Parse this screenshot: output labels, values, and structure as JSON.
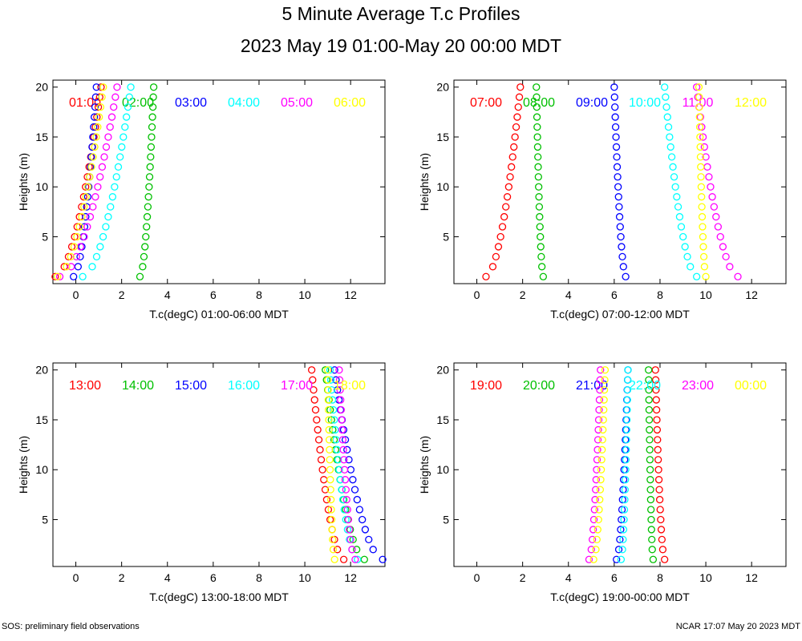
{
  "title": "5 Minute Average T.c Profiles",
  "subtitle": "2023 May 19 01:00-May 20 00:00 MDT",
  "footer_left": "SOS: preliminary field observations",
  "footer_right": "NCAR 17:07 May 20 2023 MDT",
  "colors": [
    "#ff0000",
    "#00c000",
    "#0000ff",
    "#00ffff",
    "#ff00ff",
    "#ffff00"
  ],
  "chart_data": [
    {
      "type": "scatter",
      "xlabel": "T.c(degC) 01:00-06:00 MDT",
      "ylabel": "Heights (m)",
      "xlim": [
        -1,
        13.5
      ],
      "ylim": [
        0.3,
        20.7
      ],
      "xticks": [
        0,
        2,
        4,
        6,
        8,
        10,
        12
      ],
      "yticks": [
        5,
        10,
        15,
        20
      ],
      "heights": [
        1,
        2,
        3,
        4,
        5,
        6,
        7,
        8,
        9,
        10,
        11,
        12,
        13,
        14,
        15,
        16,
        17,
        18,
        19,
        20
      ],
      "series": [
        {
          "name": "01:00",
          "start": -0.9,
          "end": 1.1
        },
        {
          "name": "02:00",
          "start": 2.8,
          "end": 3.4
        },
        {
          "name": "03:00",
          "start": -0.1,
          "end": 0.9
        },
        {
          "name": "04:00",
          "start": 0.3,
          "end": 2.4
        },
        {
          "name": "05:00",
          "start": -0.7,
          "end": 1.8
        },
        {
          "name": "06:00",
          "start": -0.8,
          "end": 1.2
        }
      ]
    },
    {
      "type": "scatter",
      "xlabel": "T.c(degC) 07:00-12:00 MDT",
      "ylabel": "Heights (m)",
      "xlim": [
        -1,
        13.5
      ],
      "ylim": [
        0.3,
        20.7
      ],
      "xticks": [
        0,
        2,
        4,
        6,
        8,
        10,
        12
      ],
      "yticks": [
        5,
        10,
        15,
        20
      ],
      "heights": [
        1,
        2,
        3,
        4,
        5,
        6,
        7,
        8,
        9,
        10,
        11,
        12,
        13,
        14,
        15,
        16,
        17,
        18,
        19,
        20
      ],
      "series": [
        {
          "name": "07:00",
          "start": 0.4,
          "end": 1.9
        },
        {
          "name": "08:00",
          "start": 2.9,
          "end": 2.6
        },
        {
          "name": "09:00",
          "start": 6.5,
          "end": 6.0
        },
        {
          "name": "10:00",
          "start": 9.6,
          "end": 8.2
        },
        {
          "name": "11:00",
          "start": 11.4,
          "end": 9.6
        },
        {
          "name": "12:00",
          "start": 10.0,
          "end": 9.7
        }
      ]
    },
    {
      "type": "scatter",
      "xlabel": "T.c(degC) 13:00-18:00 MDT",
      "ylabel": "Heights (m)",
      "xlim": [
        -1,
        13.5
      ],
      "ylim": [
        0.3,
        20.7
      ],
      "xticks": [
        0,
        2,
        4,
        6,
        8,
        10,
        12
      ],
      "yticks": [
        5,
        10,
        15,
        20
      ],
      "heights": [
        1,
        2,
        3,
        4,
        5,
        6,
        7,
        8,
        9,
        10,
        11,
        12,
        13,
        14,
        15,
        16,
        17,
        18,
        19,
        20
      ],
      "series": [
        {
          "name": "13:00",
          "start": 11.7,
          "end": 10.3
        },
        {
          "name": "14:00",
          "start": 12.6,
          "end": 10.9
        },
        {
          "name": "15:00",
          "start": 13.4,
          "end": 11.3
        },
        {
          "name": "16:00",
          "start": 12.3,
          "end": 11.1
        },
        {
          "name": "17:00",
          "start": 12.2,
          "end": 11.5
        },
        {
          "name": "18:00",
          "start": 11.3,
          "end": 11.0
        }
      ]
    },
    {
      "type": "scatter",
      "xlabel": "T.c(degC) 19:00-00:00 MDT",
      "ylabel": "Heights (m)",
      "xlim": [
        -1,
        13.5
      ],
      "ylim": [
        0.3,
        20.7
      ],
      "xticks": [
        0,
        2,
        4,
        6,
        8,
        10,
        12
      ],
      "yticks": [
        5,
        10,
        15,
        20
      ],
      "heights": [
        1,
        2,
        3,
        4,
        5,
        6,
        7,
        8,
        9,
        10,
        11,
        12,
        13,
        14,
        15,
        16,
        17,
        18,
        19,
        20
      ],
      "series": [
        {
          "name": "19:00",
          "start": 8.2,
          "end": 7.8
        },
        {
          "name": "20:00",
          "start": 7.7,
          "end": 7.5
        },
        {
          "name": "21:00",
          "start": 6.1,
          "end": 6.6
        },
        {
          "name": "22:00",
          "start": 6.3,
          "end": 6.6
        },
        {
          "name": "23:00",
          "start": 4.9,
          "end": 5.4
        },
        {
          "name": "00:00",
          "start": 5.1,
          "end": 5.6
        }
      ]
    }
  ]
}
